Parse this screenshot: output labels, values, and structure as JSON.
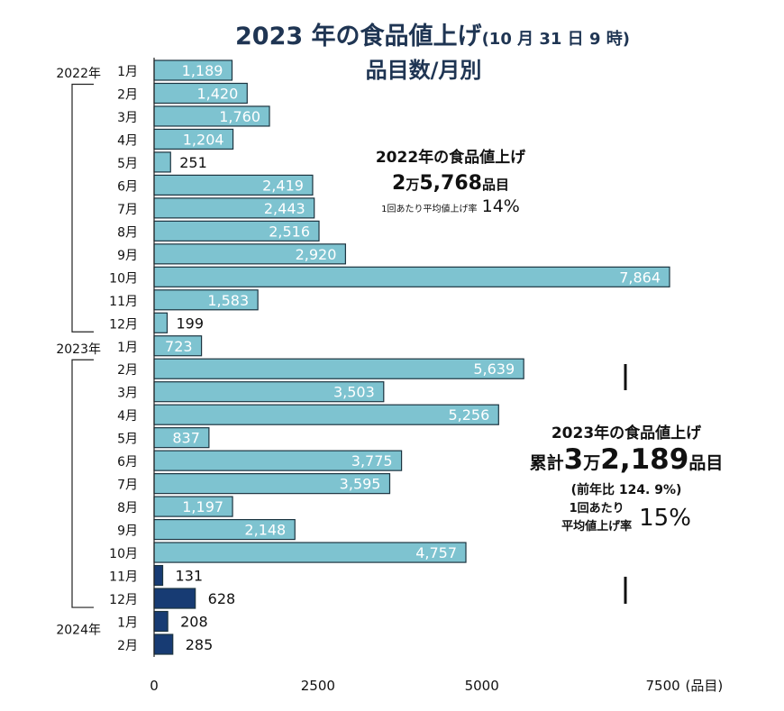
{
  "title": {
    "main": "2023 年の食品値上げ",
    "sub": "(10 月 31 日 9 時)",
    "line2": "品目数/月別"
  },
  "chart_data": {
    "type": "bar",
    "orientation": "horizontal",
    "xlim": [
      0,
      7864
    ],
    "x_ticks": [
      "0",
      "2500",
      "5000",
      "7500"
    ],
    "x_unit": "(品目)",
    "categories": [
      "1月",
      "2月",
      "3月",
      "4月",
      "5月",
      "6月",
      "7月",
      "8月",
      "9月",
      "10月",
      "11月",
      "12月",
      "1月",
      "2月",
      "3月",
      "4月",
      "5月",
      "6月",
      "7月",
      "8月",
      "9月",
      "10月",
      "11月",
      "12月",
      "1月",
      "2月"
    ],
    "year_labels": [
      {
        "index": 0,
        "label": "2022年"
      },
      {
        "index": 12,
        "label": "2023年"
      },
      {
        "index": 24,
        "label": "2024年"
      }
    ],
    "values": [
      1189,
      1420,
      1760,
      1204,
      251,
      2419,
      2443,
      2516,
      2920,
      7864,
      1583,
      199,
      723,
      5639,
      3503,
      5256,
      837,
      3775,
      3595,
      1197,
      2148,
      4757,
      131,
      628,
      208,
      285
    ],
    "value_labels": [
      "1,189",
      "1,420",
      "1,760",
      "1,204",
      "251",
      "2,419",
      "2,443",
      "2,516",
      "2,920",
      "7,864",
      "1,583",
      "199",
      "723",
      "5,639",
      "3,503",
      "5,256",
      "837",
      "3,775",
      "3,595",
      "1,197",
      "2,148",
      "4,757",
      "131",
      "628",
      "208",
      "285"
    ],
    "bar_status": [
      "past",
      "past",
      "past",
      "past",
      "past",
      "past",
      "past",
      "past",
      "past",
      "past",
      "past",
      "past",
      "past",
      "past",
      "past",
      "past",
      "past",
      "past",
      "past",
      "past",
      "past",
      "past",
      "future",
      "future",
      "future",
      "future"
    ],
    "colors": {
      "past": "#7ec3d0",
      "future": "#173b73",
      "border": "#1c3440"
    },
    "grid": false
  },
  "notes": {
    "y2022": {
      "title": "2022年の食品値上げ",
      "total_a": "2",
      "total_man": "万",
      "total_b": "5,768",
      "total_unit": "品目",
      "rate_label": "1回あたり平均値上げ率",
      "rate": "14%"
    },
    "y2023": {
      "title": "2023年の食品値上げ",
      "prefix": "累計",
      "total_a": "3",
      "total_man": "万",
      "total_b": "2,189",
      "total_unit": "品目",
      "yoy": "(前年比 124. 9%)",
      "rate_label1": "1回あたり",
      "rate_label2": "平均値上げ率",
      "rate": "15%"
    }
  }
}
